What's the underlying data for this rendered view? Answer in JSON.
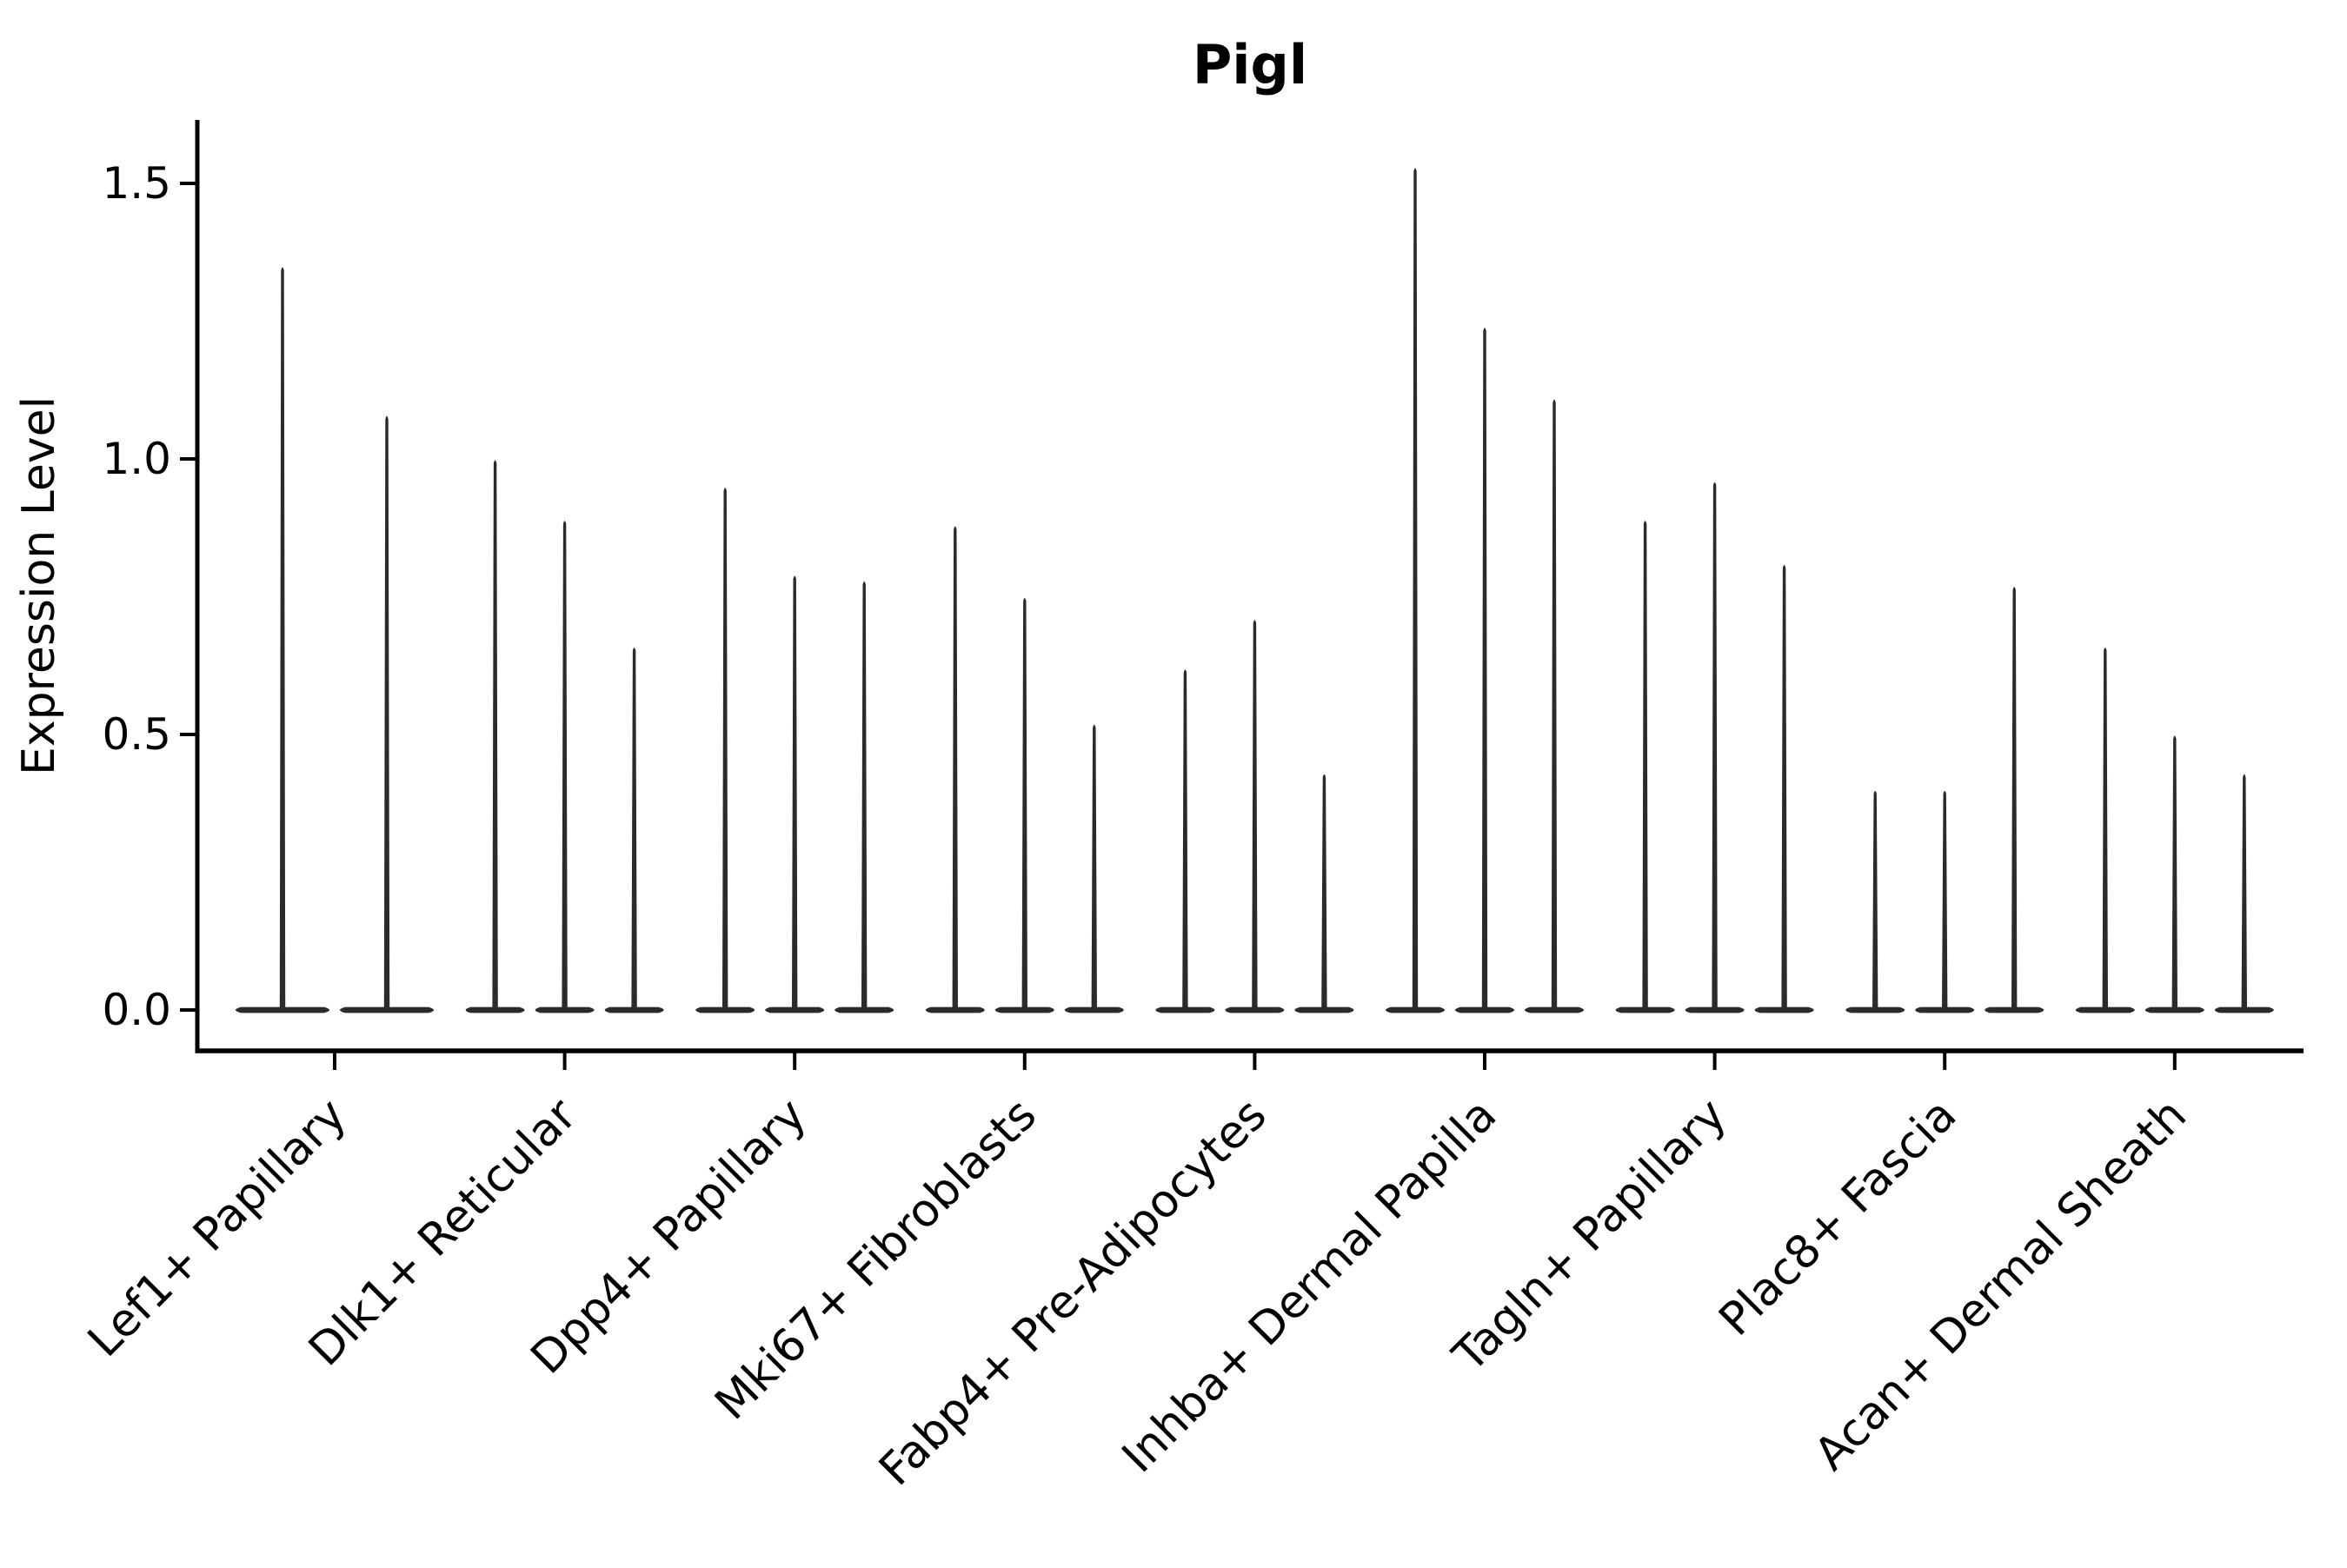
{
  "chart_data": {
    "type": "violin",
    "title": "Pigl",
    "ylabel": "Expression Level",
    "xlabel": "",
    "ylim": [
      -0.07,
      1.62
    ],
    "yticks": [
      0.0,
      0.5,
      1.0,
      1.5
    ],
    "ytick_labels": [
      "0.0",
      "0.5",
      "1.0",
      "1.5"
    ],
    "grid": false,
    "legend": "none",
    "xtick_rotation_deg": 45,
    "colors": {
      "violin": "#2b2b2b",
      "axis": "#000000",
      "text": "#000000",
      "background": "#ffffff"
    },
    "categories": [
      "Lef1+ Papillary",
      "Dlk1+ Reticular",
      "Dpp4+ Papillary",
      "Mki67+ Fibroblasts",
      "Fabp4+ Pre-Adipocytes",
      "Inhba+ Dermal Papilla",
      "Tagln+ Papillary",
      "Plac8+ Fascia",
      "Acan+ Dermal Sheath"
    ],
    "groups": [
      {
        "label": "Lef1+ Papillary",
        "violin_max_expression": [
          1.35,
          1.08
        ]
      },
      {
        "label": "Dlk1+ Reticular",
        "violin_max_expression": [
          1.0,
          0.89,
          0.66
        ]
      },
      {
        "label": "Dpp4+ Papillary",
        "violin_max_expression": [
          0.95,
          0.79,
          0.78
        ]
      },
      {
        "label": "Mki67+ Fibroblasts",
        "violin_max_expression": [
          0.88,
          0.75,
          0.52
        ]
      },
      {
        "label": "Fabp4+ Pre-Adipocytes",
        "violin_max_expression": [
          0.62,
          0.71,
          0.43
        ]
      },
      {
        "label": "Inhba+ Dermal Papilla",
        "violin_max_expression": [
          1.53,
          1.24,
          1.11
        ]
      },
      {
        "label": "Tagln+ Papillary",
        "violin_max_expression": [
          0.89,
          0.96,
          0.81
        ]
      },
      {
        "label": "Plac8+ Fascia",
        "violin_max_expression": [
          0.4,
          0.4,
          0.77
        ]
      },
      {
        "label": "Acan+ Dermal Sheath",
        "violin_max_expression": [
          0.66,
          0.5,
          0.43
        ]
      }
    ],
    "baseline_value": 0.0,
    "shape_note": "each violin is a wide flat density mass at expression 0 with a thin vertical spike reaching its max expression"
  }
}
